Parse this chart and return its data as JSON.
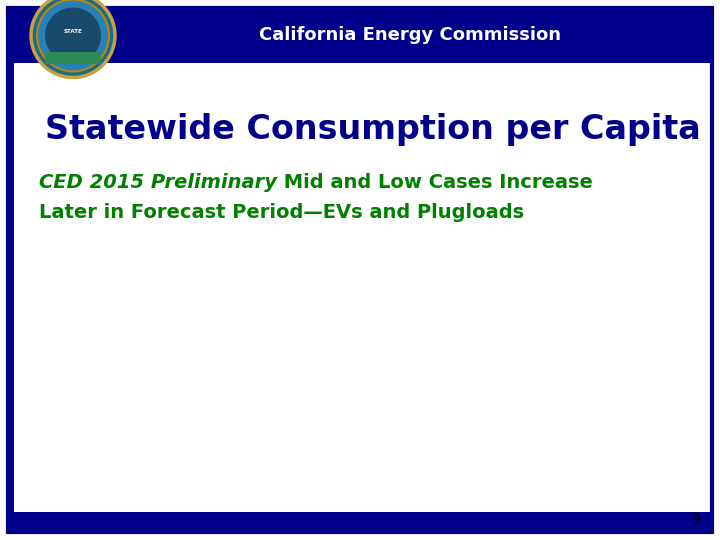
{
  "header_bg_color": "#00008B",
  "header_text": "California Energy Commission",
  "header_text_color": "#FFFFFF",
  "title_text": "Statewide Consumption per Capita",
  "title_color": "#00008B",
  "subtitle_line1_italic": "CED 2015 Preliminary",
  "subtitle_line1_rest": " Mid and Low Cases Increase",
  "subtitle_line2": "Later in Forecast Period—EVs and Plugloads",
  "subtitle_color": "#008000",
  "border_color": "#00008B",
  "bg_color": "#FFFFFF",
  "page_number": "9",
  "left_bar_color": "#00008B",
  "fig_width": 7.2,
  "fig_height": 5.4,
  "dpi": 100
}
